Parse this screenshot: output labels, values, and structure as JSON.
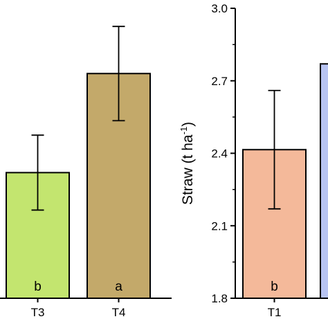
{
  "chart_data": [
    {
      "type": "bar",
      "panel": "left",
      "categories": [
        "T3",
        "T4"
      ],
      "values": [
        2.32,
        2.73
      ],
      "error": [
        0.155,
        0.195
      ],
      "significance": [
        "b",
        "a"
      ],
      "colors": [
        "#c3e56f",
        "#c3a96a"
      ],
      "ylim": [
        1.8,
        3.0
      ],
      "ylabel": "",
      "title": ""
    },
    {
      "type": "bar",
      "panel": "right",
      "categories": [
        "T1",
        ""
      ],
      "values": [
        2.415,
        2.77
      ],
      "error": [
        0.245,
        null
      ],
      "significance": [
        "b",
        ""
      ],
      "colors": [
        "#f4b99a",
        "#b8c4f2"
      ],
      "ylim": [
        1.8,
        3.0
      ],
      "yticks": [
        "1.8",
        "2.1",
        "2.4",
        "2.7",
        "3.0"
      ],
      "ylabel": "Straw",
      "ylabel_unit_base": "(t ha",
      "ylabel_unit_exp": "-1",
      "ylabel_unit_close": ")",
      "title": ""
    }
  ]
}
